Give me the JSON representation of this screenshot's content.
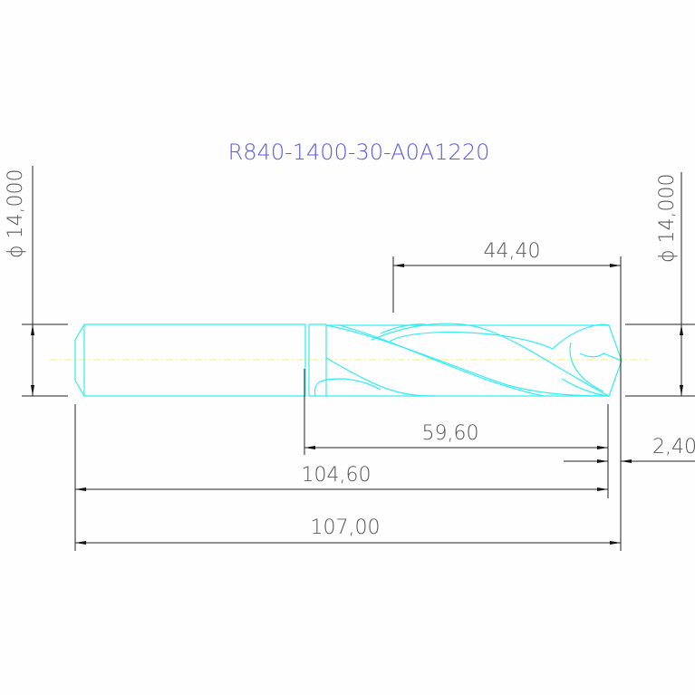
{
  "drawing": {
    "title": "R840-1400-30-A0A1220",
    "dimensions": {
      "shank_diameter": "ϕ 14,000",
      "body_diameter": "ϕ 14,000",
      "flute_length": "44,40",
      "body_length": "59,60",
      "length_to_tip_shoulder": "104,60",
      "overall_length": "107,00",
      "tip_length": "2,40"
    },
    "colors": {
      "part": "#33eef0",
      "centerline": "#f5f06a",
      "title": "#5a5af0",
      "dimension": "#222222"
    }
  }
}
